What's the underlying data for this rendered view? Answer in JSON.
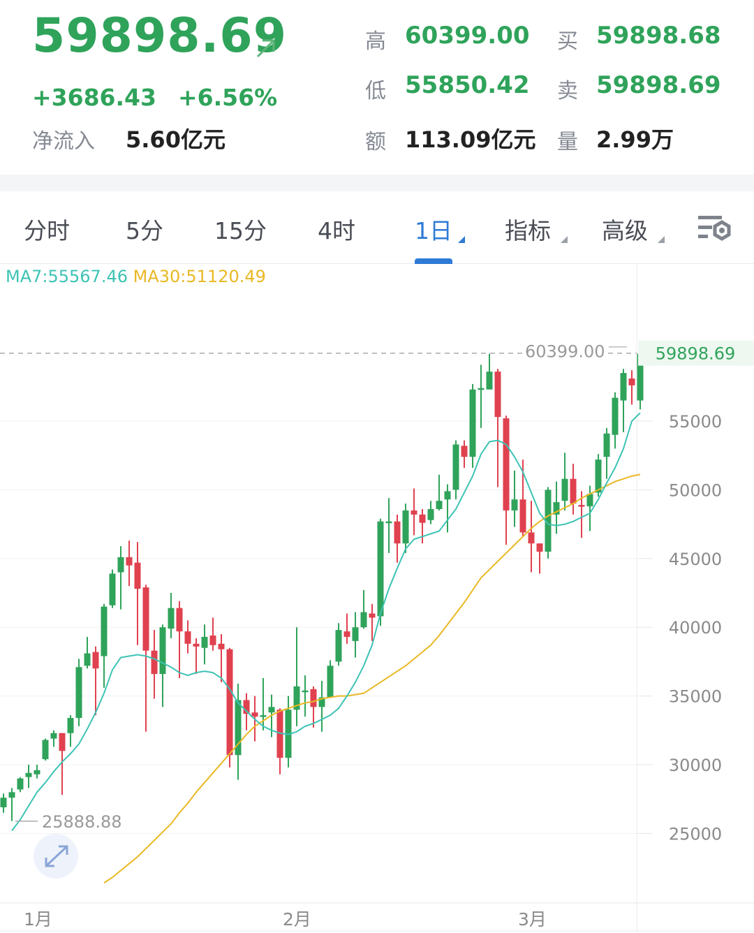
{
  "header": {
    "price": "59898.69",
    "arrow_icon": "arrow-up-right-icon",
    "change": "+3686.43",
    "change_pct": "+6.56%",
    "net_inflow_label": "净流入",
    "net_inflow_value": "5.60亿元",
    "high_label": "高",
    "high_value": "60399.00",
    "low_label": "低",
    "low_value": "55850.42",
    "amount_label": "额",
    "amount_value": "113.09亿元",
    "buy_label": "买",
    "buy_value": "59898.68",
    "sell_label": "卖",
    "sell_value": "59898.69",
    "volume_label": "量",
    "volume_value": "2.99万"
  },
  "tabs": [
    {
      "label": "分时",
      "active": false,
      "dropdown": false
    },
    {
      "label": "5分",
      "active": false,
      "dropdown": false
    },
    {
      "label": "15分",
      "active": false,
      "dropdown": false
    },
    {
      "label": "4时",
      "active": false,
      "dropdown": false
    },
    {
      "label": "1日",
      "active": true,
      "dropdown": true
    },
    {
      "label": "指标",
      "active": false,
      "dropdown": true
    },
    {
      "label": "高级",
      "active": false,
      "dropdown": true
    }
  ],
  "settings_icon": "chart-settings-icon",
  "ma_legend": {
    "ma7": "MA7:55567.46",
    "ma30": "MA30:51120.49"
  },
  "colors": {
    "up": "#2fa35a",
    "down": "#e0414f",
    "ma7": "#3cc3b4",
    "ma30": "#e9b824",
    "active_tab": "#2e7bd6"
  },
  "chart_data": {
    "type": "candlestick",
    "title": "",
    "y_ticks": [
      55000,
      50000,
      45000,
      40000,
      35000,
      30000,
      25000
    ],
    "x_ticks": [
      "1月",
      "2月",
      "3月"
    ],
    "ylim": [
      21000,
      63000
    ],
    "max_label": "60399.00",
    "min_label": "25888.88",
    "last_price_label": "59898.69",
    "grid": true,
    "series": [
      {
        "name": "MA7",
        "latest": 55567.46
      },
      {
        "name": "MA30",
        "latest": 51120.49
      }
    ],
    "candles": [
      [
        26900,
        27600,
        27900,
        26500
      ],
      [
        27600,
        28000,
        28300,
        25900
      ],
      [
        28200,
        29000,
        29100,
        28000
      ],
      [
        29100,
        29400,
        30000,
        28300
      ],
      [
        29300,
        29600,
        30000,
        29000
      ],
      [
        30400,
        31800,
        31900,
        30300
      ],
      [
        31900,
        32300,
        32500,
        31300
      ],
      [
        32300,
        31000,
        32300,
        27800
      ],
      [
        32300,
        33400,
        33600,
        31300
      ],
      [
        33400,
        37100,
        37700,
        32800
      ],
      [
        37200,
        38100,
        39300,
        37000
      ],
      [
        38200,
        37000,
        38600,
        33600
      ],
      [
        37900,
        41500,
        41700,
        35600
      ],
      [
        41600,
        43900,
        44200,
        41400
      ],
      [
        44000,
        45100,
        45900,
        41300
      ],
      [
        45100,
        44500,
        46300,
        43000
      ],
      [
        44700,
        42800,
        46200,
        38700
      ],
      [
        42900,
        38300,
        43100,
        32400
      ],
      [
        38300,
        36600,
        39800,
        34800
      ],
      [
        36600,
        40000,
        40200,
        34200
      ],
      [
        39900,
        41400,
        42500,
        39200
      ],
      [
        41400,
        39700,
        41900,
        36300
      ],
      [
        39700,
        38800,
        40500,
        38100
      ],
      [
        38800,
        38600,
        39200,
        36600
      ],
      [
        38500,
        39300,
        40200,
        37300
      ],
      [
        39400,
        38700,
        40700,
        38300
      ],
      [
        38800,
        38400,
        39500,
        36000
      ],
      [
        38400,
        30700,
        38500,
        29800
      ],
      [
        30700,
        34700,
        35900,
        28900
      ],
      [
        34700,
        33700,
        35200,
        32500
      ],
      [
        33800,
        33500,
        35000,
        31700
      ],
      [
        33600,
        33600,
        36300,
        32500
      ],
      [
        33800,
        34200,
        35100,
        32000
      ],
      [
        34000,
        30500,
        34100,
        29300
      ],
      [
        30500,
        34000,
        35000,
        29800
      ],
      [
        34000,
        35700,
        40000,
        32800
      ],
      [
        35400,
        35400,
        36500,
        33500
      ],
      [
        35500,
        34200,
        35700,
        32700
      ],
      [
        34200,
        34900,
        36100,
        32400
      ],
      [
        34900,
        37200,
        37600,
        35000
      ],
      [
        37500,
        39800,
        40300,
        37200
      ],
      [
        39700,
        39300,
        41000,
        38800
      ],
      [
        39000,
        40000,
        41100,
        37800
      ],
      [
        40000,
        41100,
        42700,
        39900
      ],
      [
        41000,
        40700,
        41700,
        39000
      ],
      [
        40800,
        47700,
        47900,
        40100
      ],
      [
        47700,
        47700,
        49400,
        45400
      ],
      [
        47700,
        46100,
        48200,
        44700
      ],
      [
        46100,
        48500,
        49000,
        45400
      ],
      [
        48500,
        48200,
        50100,
        46700
      ],
      [
        48200,
        47600,
        48600,
        46100
      ],
      [
        47800,
        48600,
        49200,
        47500
      ],
      [
        48600,
        49200,
        51100,
        48500
      ],
      [
        49300,
        49900,
        50400,
        46900
      ],
      [
        50000,
        53300,
        53600,
        49300
      ],
      [
        53200,
        52400,
        53600,
        51600
      ],
      [
        52400,
        57300,
        57700,
        51600
      ],
      [
        57400,
        57400,
        59100,
        54500
      ],
      [
        57300,
        58600,
        59900,
        58100
      ],
      [
        58600,
        55300,
        58800,
        50200
      ],
      [
        55200,
        48500,
        55400,
        46000
      ],
      [
        48500,
        49300,
        51400,
        47300
      ],
      [
        49300,
        46900,
        52200,
        46600
      ],
      [
        46900,
        46100,
        49200,
        44000
      ],
      [
        46100,
        45500,
        46100,
        43900
      ],
      [
        45500,
        50000,
        50200,
        45000
      ],
      [
        48200,
        49100,
        50600,
        46800
      ],
      [
        49200,
        50800,
        52700,
        48500
      ],
      [
        50800,
        49000,
        51900,
        48200
      ],
      [
        48900,
        48800,
        49900,
        46500
      ],
      [
        48800,
        49700,
        50300,
        47000
      ],
      [
        49800,
        52200,
        52600,
        49500
      ],
      [
        52400,
        54100,
        54500,
        50800
      ],
      [
        54000,
        56700,
        57100,
        53000
      ],
      [
        56500,
        58500,
        58800,
        54200
      ],
      [
        58100,
        57600,
        58700,
        56200
      ],
      [
        56500,
        59900,
        60400,
        55850
      ]
    ],
    "ma7": [
      25200,
      26000,
      27000,
      28000,
      28700,
      29500,
      30200,
      30800,
      31500,
      32600,
      33800,
      35200,
      36900,
      37800,
      37900,
      38000,
      37900,
      37700,
      37400,
      37100,
      36700,
      36500,
      36700,
      36800,
      36700,
      36300,
      35500,
      34500,
      33900,
      33300,
      32800,
      32500,
      32300,
      32200,
      32400,
      32800,
      33000,
      33300,
      33600,
      34100,
      35000,
      36000,
      37200,
      38700,
      41000,
      42800,
      44300,
      45700,
      46400,
      46600,
      46800,
      47000,
      47800,
      48600,
      49800,
      51000,
      52600,
      53500,
      53600,
      53300,
      52400,
      51300,
      49800,
      48300,
      47500,
      47400,
      47500,
      47700,
      48000,
      48300,
      49300,
      50500,
      51600,
      53000,
      55000,
      55600
    ],
    "ma30": [
      21400,
      21800,
      22300,
      22800,
      23300,
      23900,
      24500,
      25100,
      25700,
      26500,
      27200,
      28000,
      28700,
      29400,
      30100,
      30800,
      31500,
      32200,
      32800,
      33200,
      33600,
      33900,
      34100,
      34300,
      34500,
      34600,
      34800,
      34900,
      35000,
      35000,
      35100,
      35200,
      35600,
      36000,
      36400,
      36800,
      37200,
      37700,
      38200,
      38700,
      39400,
      40200,
      41000,
      41800,
      42700,
      43600,
      44200,
      44800,
      45400,
      46000,
      46600,
      47200,
      47700,
      48100,
      48400,
      48700,
      49000,
      49400,
      49700,
      50000,
      50300,
      50600,
      50800,
      51000,
      51120
    ]
  }
}
